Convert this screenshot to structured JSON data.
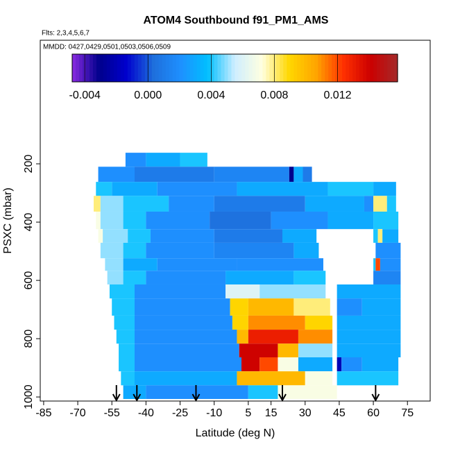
{
  "chart_data": {
    "type": "heatmap",
    "title": "ATOM4 Southbound f91_PM1_AMS",
    "subtitle": "Flts: 2,3,4,5,6,7",
    "annotation": "MMDD: 0427,0429,0501,0503,0506,0509",
    "xlabel": "Latitude (deg N)",
    "ylabel": "PSXC (mbar)",
    "xlim": [
      -86.5,
      85
    ],
    "xticks": [
      -85,
      -70,
      -55,
      -40,
      -25,
      -10,
      5,
      15,
      30,
      45,
      60,
      75
    ],
    "ylim": [
      1014,
      -224
    ],
    "yticks": [
      200,
      400,
      600,
      800,
      1000
    ],
    "zlim": [
      -0.0048,
      0.0158
    ],
    "zticks": [
      -0.004,
      {
        "value": 0,
        "label": "0.000"
      },
      0.004,
      0.008,
      0.012
    ],
    "colors": [
      "#8a2be2",
      "#00008b",
      "#0000cd",
      "#1e6fdc",
      "#1e90ff",
      "#00bfff",
      "#cfeeff",
      "#ffffe0",
      "#ffd700",
      "#ffa500",
      "#ff3000",
      "#cc0000",
      "#a52a2a"
    ],
    "arrows": [
      -53,
      -44,
      -18,
      20,
      61
    ],
    "rows": [
      {
        "p": [
          162,
          210
        ],
        "cells": [
          [
            -49,
            -40,
            0.002
          ],
          [
            -40,
            -25,
            0.003
          ],
          [
            -25,
            -13,
            0.004
          ]
        ]
      },
      {
        "p": [
          210,
          262
        ],
        "cells": [
          [
            -61,
            -45,
            0.002
          ],
          [
            -45,
            -10,
            0.001
          ],
          [
            -10,
            23,
            0.0015
          ],
          [
            23,
            25,
            -0.003
          ],
          [
            25,
            29,
            0.003
          ],
          [
            29,
            33,
            0.001
          ]
        ]
      },
      {
        "p": [
          262,
          310
        ],
        "cells": [
          [
            -62,
            -55,
            0.004
          ],
          [
            -55,
            -35,
            0.003
          ],
          [
            -35,
            0,
            0.002
          ],
          [
            0,
            40,
            0.003
          ],
          [
            40,
            60,
            0.004
          ],
          [
            60,
            70,
            0.003
          ]
        ]
      },
      {
        "p": [
          310,
          364
        ],
        "cells": [
          [
            -63,
            -60,
            0.008
          ],
          [
            -60,
            -50,
            0.005
          ],
          [
            -50,
            -30,
            0.004
          ],
          [
            -30,
            -10,
            0.002
          ],
          [
            -10,
            30,
            0.001
          ],
          [
            30,
            56,
            0.003
          ],
          [
            56,
            60,
            0.002
          ],
          [
            60,
            66,
            0.008
          ],
          [
            66,
            70,
            0.004
          ]
        ]
      },
      {
        "p": [
          364,
          424
        ],
        "cells": [
          [
            -62,
            -60,
            0.007
          ],
          [
            -60,
            -50,
            0.005
          ],
          [
            -50,
            -40,
            0.004
          ],
          [
            -40,
            -12,
            0.002
          ],
          [
            -12,
            15,
            0.0005
          ],
          [
            15,
            40,
            0.002
          ],
          [
            40,
            60,
            0.003
          ],
          [
            60,
            71,
            0.004
          ]
        ]
      },
      {
        "p": [
          424,
          471
        ],
        "cells": [
          [
            -61,
            -59,
            0.007
          ],
          [
            -59,
            -48,
            0.005
          ],
          [
            -48,
            -38,
            0.004
          ],
          [
            -38,
            -10,
            0.002
          ],
          [
            -10,
            20,
            0.001
          ],
          [
            20,
            35,
            0.003
          ],
          [
            60,
            62,
            0.004
          ],
          [
            62,
            64,
            0.008
          ],
          [
            64,
            71,
            0.003
          ]
        ]
      },
      {
        "p": [
          471,
          524
        ],
        "cells": [
          [
            -60,
            -50,
            0.005
          ],
          [
            -50,
            -40,
            0.004
          ],
          [
            -40,
            -10,
            0.002
          ],
          [
            -10,
            25,
            0.0015
          ],
          [
            25,
            36,
            0.003
          ],
          [
            61,
            72,
            0.002
          ]
        ]
      },
      {
        "p": [
          524,
          567
        ],
        "cells": [
          [
            -58,
            -50,
            0.005
          ],
          [
            -50,
            -35,
            0.003
          ],
          [
            -35,
            0,
            0.002
          ],
          [
            0,
            38,
            0.002
          ],
          [
            60,
            61,
            0.004
          ],
          [
            61,
            63,
            0.012
          ],
          [
            63,
            72,
            0.002
          ]
        ]
      },
      {
        "p": [
          567,
          614
        ],
        "cells": [
          [
            -57,
            -50,
            0.005
          ],
          [
            -50,
            -40,
            0.004
          ],
          [
            -40,
            -5,
            0.002
          ],
          [
            -5,
            25,
            0.003
          ],
          [
            25,
            39,
            0.004
          ],
          [
            60,
            72,
            0.0015
          ]
        ]
      },
      {
        "p": [
          614,
          662
        ],
        "cells": [
          [
            -56,
            -45,
            0.004
          ],
          [
            -45,
            -5,
            0.002
          ],
          [
            -5,
            10,
            0.006
          ],
          [
            10,
            39,
            0.005
          ],
          [
            44,
            72,
            0.003
          ]
        ]
      },
      {
        "p": [
          662,
          721
        ],
        "cells": [
          [
            -55,
            -45,
            0.004
          ],
          [
            -45,
            -3,
            0.002
          ],
          [
            -3,
            5,
            0.009
          ],
          [
            5,
            25,
            0.01
          ],
          [
            25,
            41,
            0.008
          ],
          [
            44,
            55,
            0.002
          ],
          [
            55,
            72,
            0.003
          ]
        ]
      },
      {
        "p": [
          721,
          769
        ],
        "cells": [
          [
            -54,
            -45,
            0.004
          ],
          [
            -45,
            -2,
            0.002
          ],
          [
            -2,
            5,
            0.009
          ],
          [
            5,
            30,
            0.011
          ],
          [
            30,
            42,
            0.009
          ],
          [
            44,
            72,
            0.003
          ]
        ]
      },
      {
        "p": [
          769,
          817
        ],
        "cells": [
          [
            -53,
            -45,
            0.004
          ],
          [
            -45,
            0,
            0.002
          ],
          [
            0,
            5,
            0.01
          ],
          [
            5,
            27,
            0.013
          ],
          [
            27,
            42,
            0.011
          ],
          [
            44,
            72,
            0.003
          ]
        ]
      },
      {
        "p": [
          817,
          864
        ],
        "cells": [
          [
            -52,
            -45,
            0.004
          ],
          [
            -45,
            1,
            0.002
          ],
          [
            1,
            18,
            0.014
          ],
          [
            18,
            27,
            0.01
          ],
          [
            27,
            42,
            0.005
          ],
          [
            44,
            72,
            0.003
          ]
        ]
      },
      {
        "p": [
          864,
          912
        ],
        "cells": [
          [
            -52,
            -45,
            0.004
          ],
          [
            -45,
            2,
            0.002
          ],
          [
            2,
            10,
            0.014
          ],
          [
            10,
            18,
            0.012
          ],
          [
            18,
            27,
            0.007
          ],
          [
            27,
            42,
            0.003
          ],
          [
            44,
            46,
            -0.002
          ],
          [
            46,
            55,
            0.002
          ],
          [
            55,
            71,
            0.003
          ]
        ]
      },
      {
        "p": [
          912,
          960
        ],
        "cells": [
          [
            -51,
            -45,
            0.004
          ],
          [
            -45,
            0,
            0.003
          ],
          [
            0,
            30,
            0.01
          ],
          [
            30,
            42,
            0.007
          ],
          [
            44,
            71,
            0.004
          ]
        ]
      },
      {
        "p": [
          960,
          1007
        ],
        "cells": [
          [
            -50,
            -40,
            0.003
          ],
          [
            -40,
            5,
            0.002
          ],
          [
            5,
            18,
            0.004
          ],
          [
            18,
            44,
            0.007
          ]
        ]
      }
    ]
  }
}
